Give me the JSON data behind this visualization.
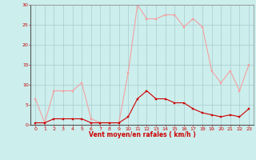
{
  "hours": [
    0,
    1,
    2,
    3,
    4,
    5,
    6,
    7,
    8,
    9,
    10,
    11,
    12,
    13,
    14,
    15,
    16,
    17,
    18,
    19,
    20,
    21,
    22,
    23
  ],
  "rafales": [
    6.5,
    0.5,
    8.5,
    8.5,
    8.5,
    10.5,
    1.5,
    0.5,
    0.5,
    0.5,
    13,
    30,
    26.5,
    26.5,
    27.5,
    27.5,
    24.5,
    26.5,
    24.5,
    13.5,
    10.5,
    13.5,
    8.5,
    15
  ],
  "moyen": [
    0.5,
    0.5,
    1.5,
    1.5,
    1.5,
    1.5,
    0.5,
    0.5,
    0.5,
    0.5,
    2,
    6.5,
    8.5,
    6.5,
    6.5,
    5.5,
    5.5,
    4,
    3,
    2.5,
    2,
    2.5,
    2,
    4
  ],
  "color_rafales": "#f4a0a0",
  "color_moyen": "#cc0000",
  "bg_color": "#cceeed",
  "grid_color": "#aacccc",
  "xlabel": "Vent moyen/en rafales ( km/h )",
  "xlabel_color": "#cc0000",
  "tick_color": "#cc0000",
  "ylim": [
    0,
    30
  ],
  "xlim": [
    -0.5,
    23.5
  ],
  "yticks": [
    0,
    5,
    10,
    15,
    20,
    25,
    30
  ],
  "xticks": [
    0,
    1,
    2,
    3,
    4,
    5,
    6,
    7,
    8,
    9,
    10,
    11,
    12,
    13,
    14,
    15,
    16,
    17,
    18,
    19,
    20,
    21,
    22,
    23
  ]
}
